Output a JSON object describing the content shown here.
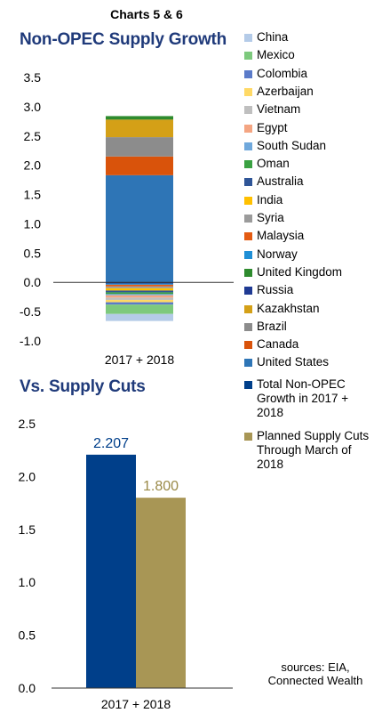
{
  "header": "Charts 5 & 6",
  "chart_data": [
    {
      "type": "bar",
      "stacked": true,
      "title": "Non-OPEC Supply Growth",
      "categories": [
        "2017 + 2018"
      ],
      "ylim": [
        -1.0,
        3.5
      ],
      "yticks": [
        "3.5",
        "3.0",
        "2.5",
        "2.0",
        "1.5",
        "1.0",
        "0.5",
        "0.0",
        "-0.5",
        "-1.0"
      ],
      "grid": false,
      "legend_position": "right",
      "series": [
        {
          "name": "United States",
          "values": [
            1.83
          ],
          "color": "#2e75b6"
        },
        {
          "name": "Canada",
          "values": [
            0.32
          ],
          "color": "#d9530b"
        },
        {
          "name": "Brazil",
          "values": [
            0.33
          ],
          "color": "#8c8c8c"
        },
        {
          "name": "Kazakhstan",
          "values": [
            0.3
          ],
          "color": "#d4a017"
        },
        {
          "name": "Russia",
          "values": [
            -0.02
          ],
          "color": "#1f3a93"
        },
        {
          "name": "United Kingdom",
          "values": [
            0.06
          ],
          "color": "#2e8b2e"
        },
        {
          "name": "Norway",
          "values": [
            -0.02
          ],
          "color": "#1f8fd6"
        },
        {
          "name": "Malaysia",
          "values": [
            -0.03
          ],
          "color": "#e45b12"
        },
        {
          "name": "Syria",
          "values": [
            -0.03
          ],
          "color": "#9b9b9b"
        },
        {
          "name": "India",
          "values": [
            -0.04
          ],
          "color": "#ffc000"
        },
        {
          "name": "Australia",
          "values": [
            -0.03
          ],
          "color": "#2f5597"
        },
        {
          "name": "Oman",
          "values": [
            -0.03
          ],
          "color": "#3aa142"
        },
        {
          "name": "South Sudan",
          "values": [
            -0.02
          ],
          "color": "#6fa8dc"
        },
        {
          "name": "Egypt",
          "values": [
            -0.04
          ],
          "color": "#f4a582"
        },
        {
          "name": "Vietnam",
          "values": [
            -0.04
          ],
          "color": "#bfbfbf"
        },
        {
          "name": "Azerbaijan",
          "values": [
            -0.04
          ],
          "color": "#ffd966"
        },
        {
          "name": "Colombia",
          "values": [
            -0.04
          ],
          "color": "#5b7bc9"
        },
        {
          "name": "Mexico",
          "values": [
            -0.16
          ],
          "color": "#7dc97d"
        },
        {
          "name": "China",
          "values": [
            -0.12
          ],
          "color": "#b4cbe8"
        }
      ]
    },
    {
      "type": "bar",
      "title": "Vs. Supply Cuts",
      "categories": [
        "2017 + 2018"
      ],
      "ylim": [
        0.0,
        2.5
      ],
      "yticks": [
        "2.5",
        "2.0",
        "1.5",
        "1.0",
        "0.5",
        "0.0"
      ],
      "grid": false,
      "legend_position": "right",
      "series": [
        {
          "name": "Total Non-OPEC Growth in 2017 + 2018",
          "values": [
            2.207
          ],
          "label": "2.207",
          "color": "#003f8a",
          "label_color": "#003f8a"
        },
        {
          "name": "Planned Supply Cuts Through March of 2018",
          "values": [
            1.8
          ],
          "label": "1.800",
          "color": "#a89655",
          "label_color": "#9a8a48"
        }
      ]
    }
  ],
  "sources": "sources: EIA, Connected Wealth"
}
